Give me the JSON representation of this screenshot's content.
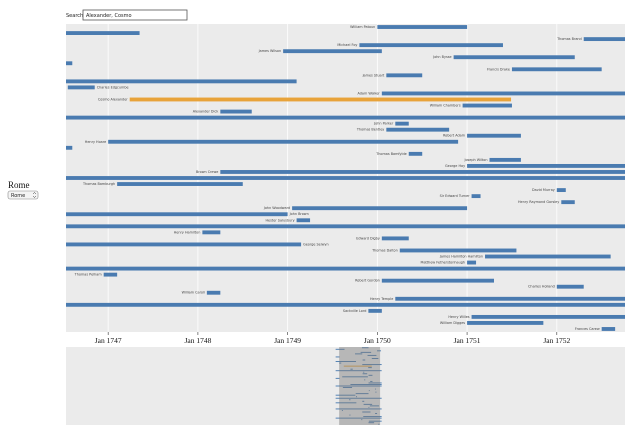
{
  "search": {
    "label": "Search:",
    "value": "Alexander, Cosmo"
  },
  "place": {
    "title": "Rome",
    "option": "Rome"
  },
  "chart_data": {
    "type": "timeline",
    "xlim": [
      1746.53,
      1752.76
    ],
    "xticks": [
      {
        "value": 1747,
        "label": "Jan 1747"
      },
      {
        "value": 1748,
        "label": "Jan 1748"
      },
      {
        "value": 1749,
        "label": "Jan 1749"
      },
      {
        "value": 1750,
        "label": "Jan 1750"
      },
      {
        "value": 1751,
        "label": "Jan 1751"
      },
      {
        "value": 1752,
        "label": "Jan 1752"
      }
    ],
    "overview_xlim": [
      1705,
      1790
    ],
    "grid": true,
    "color": "#4a7bb0",
    "tasks": [
      {
        "name": "William Patoun",
        "start": 1750.0,
        "end": 1751.0
      },
      {
        "start": 1746.0,
        "end": 1747.35
      },
      {
        "name": "Thomas Brand",
        "start": 1752.3,
        "end": 1752.9
      },
      {
        "name": "Michael Foy",
        "start": 1749.8,
        "end": 1751.4
      },
      {
        "name": "James Wilson",
        "start": 1748.95,
        "end": 1750.05
      },
      {
        "name": "John Bysse",
        "start": 1750.85,
        "end": 1752.2
      },
      {
        "start": 1746.0,
        "end": 1746.6
      },
      {
        "name": "Francis Drake",
        "start": 1751.5,
        "end": 1752.5
      },
      {
        "name": "James Stuart",
        "start": 1750.1,
        "end": 1750.5
      },
      {
        "start": 1746.0,
        "end": 1749.1
      },
      {
        "name": "Charles Edgcumbe",
        "start": 1746.55,
        "end": 1746.85
      },
      {
        "name": "Adam Walker",
        "start": 1750.05,
        "end": 1753.0
      },
      {
        "name": "Cosmo Alexander",
        "start": 1747.24,
        "end": 1751.49,
        "color": "#e8a33a"
      },
      {
        "name": "William Chambers",
        "start": 1750.95,
        "end": 1751.5
      },
      {
        "name": "Alexander Dick",
        "start": 1748.25,
        "end": 1748.6
      },
      {
        "start": 1746.0,
        "end": 1753.0
      },
      {
        "name": "John Parker",
        "start": 1750.2,
        "end": 1750.35
      },
      {
        "name": "Thomas Bentley",
        "start": 1750.1,
        "end": 1750.8
      },
      {
        "name": "Robert Adam",
        "start": 1751.0,
        "end": 1751.6
      },
      {
        "name": "Henry Hoare",
        "start": 1747.0,
        "end": 1750.9
      },
      {
        "start": 1746.0,
        "end": 1746.6
      },
      {
        "name": "Thomas Bamfylde",
        "start": 1750.35,
        "end": 1750.5
      },
      {
        "name": "Joseph Wilton",
        "start": 1751.25,
        "end": 1751.6
      },
      {
        "name": "George Hay",
        "start": 1751.0,
        "end": 1753.0
      },
      {
        "name": "Brown Crewe",
        "start": 1748.25,
        "end": 1753.0
      },
      {
        "start": 1746.0,
        "end": 1753.0
      },
      {
        "name": "Thomas Bamburgh",
        "start": 1747.1,
        "end": 1748.5
      },
      {
        "name": "David Murray",
        "start": 1752.0,
        "end": 1752.1
      },
      {
        "name": "Sir Edward Turner",
        "start": 1751.05,
        "end": 1751.15
      },
      {
        "name": "Henry Raymond Gorsley",
        "start": 1752.05,
        "end": 1752.2
      },
      {
        "name": "John Woodward",
        "start": 1749.05,
        "end": 1751.0
      },
      {
        "name": "John Brown",
        "start": 1746.0,
        "end": 1749.0
      },
      {
        "name": "Hester Salusbury",
        "start": 1749.1,
        "end": 1749.25
      },
      {
        "start": 1746.0,
        "end": 1753.0
      },
      {
        "name": "Henry Hamilton",
        "start": 1748.05,
        "end": 1748.25
      },
      {
        "name": "Edward Digby",
        "start": 1750.05,
        "end": 1750.35
      },
      {
        "name": "George Selwyn",
        "start": 1746.0,
        "end": 1749.15
      },
      {
        "name": "Thomas Dalton",
        "start": 1750.25,
        "end": 1751.55
      },
      {
        "name": "James Hamilton Hamilton",
        "start": 1751.2,
        "end": 1752.6
      },
      {
        "name": "Matthew Fetherstonhaugh",
        "start": 1751.0,
        "end": 1751.1
      },
      {
        "name": "John Bagot",
        "start": 1746.0,
        "end": 1753.0
      },
      {
        "name": "Thomas Pelham",
        "start": 1746.95,
        "end": 1747.1
      },
      {
        "name": "Robert Gordon",
        "start": 1750.05,
        "end": 1751.3
      },
      {
        "name": "Charles Holland",
        "start": 1752.0,
        "end": 1752.3
      },
      {
        "name": "William Caroli",
        "start": 1748.1,
        "end": 1748.25
      },
      {
        "name": "Henry Temple",
        "start": 1750.2,
        "end": 1753.0
      },
      {
        "start": 1746.0,
        "end": 1753.0
      },
      {
        "name": "Sackville Lord",
        "start": 1749.9,
        "end": 1750.05
      },
      {
        "name": "Henry Willes",
        "start": 1751.05,
        "end": 1753.0
      },
      {
        "name": "William Digges",
        "start": 1751.0,
        "end": 1751.85
      },
      {
        "name": "Frances Carew",
        "start": 1752.5,
        "end": 1752.65
      }
    ]
  }
}
